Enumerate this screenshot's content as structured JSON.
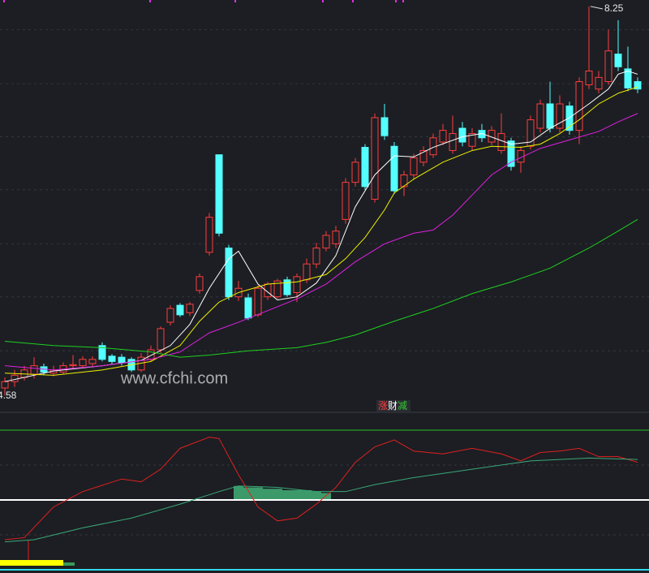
{
  "chart_data": [
    {
      "type": "candlestick",
      "ylim": [
        4.52,
        8.31
      ],
      "gridlines": [
        8.03,
        7.52,
        7.02,
        6.52,
        6.01,
        5.51,
        5.0
      ],
      "up_color": "#ff3c3c",
      "down_color": "#54ffff",
      "candles": [
        [
          4.65,
          4.75,
          4.58,
          4.71
        ],
        [
          4.71,
          4.82,
          4.66,
          4.77
        ],
        [
          4.75,
          4.86,
          4.72,
          4.82
        ],
        [
          4.78,
          4.94,
          4.74,
          4.86
        ],
        [
          4.85,
          4.88,
          4.77,
          4.8
        ],
        [
          4.79,
          4.86,
          4.76,
          4.82
        ],
        [
          4.8,
          4.89,
          4.78,
          4.86
        ],
        [
          4.86,
          4.96,
          4.83,
          4.87
        ],
        [
          4.86,
          4.95,
          4.84,
          4.92
        ],
        [
          4.88,
          4.95,
          4.85,
          4.92
        ],
        [
          5.05,
          5.08,
          4.9,
          4.92
        ],
        [
          4.95,
          4.97,
          4.87,
          4.9
        ],
        [
          4.94,
          4.97,
          4.86,
          4.89
        ],
        [
          4.92,
          4.94,
          4.8,
          4.82
        ],
        [
          4.82,
          4.98,
          4.8,
          4.94
        ],
        [
          4.92,
          5.05,
          4.9,
          5.01
        ],
        [
          5.01,
          5.23,
          4.98,
          5.21
        ],
        [
          5.27,
          5.43,
          5.24,
          5.4
        ],
        [
          5.43,
          5.45,
          5.32,
          5.34
        ],
        [
          5.36,
          5.46,
          5.33,
          5.44
        ],
        [
          5.57,
          5.73,
          5.54,
          5.7
        ],
        [
          5.93,
          6.3,
          5.9,
          6.26
        ],
        [
          6.85,
          6.85,
          6.08,
          6.11
        ],
        [
          5.97,
          6.0,
          5.48,
          5.51
        ],
        [
          5.51,
          5.66,
          5.47,
          5.59
        ],
        [
          5.5,
          5.54,
          5.29,
          5.31
        ],
        [
          5.34,
          5.62,
          5.32,
          5.59
        ],
        [
          5.51,
          5.65,
          5.48,
          5.63
        ],
        [
          5.51,
          5.68,
          5.49,
          5.66
        ],
        [
          5.67,
          5.7,
          5.51,
          5.53
        ],
        [
          5.55,
          5.73,
          5.46,
          5.7
        ],
        [
          5.67,
          5.87,
          5.64,
          5.82
        ],
        [
          5.82,
          6.02,
          5.78,
          5.97
        ],
        [
          5.97,
          6.13,
          5.94,
          6.09
        ],
        [
          6.01,
          6.18,
          5.97,
          6.13
        ],
        [
          6.24,
          6.63,
          6.2,
          6.59
        ],
        [
          6.59,
          6.82,
          6.55,
          6.78
        ],
        [
          6.92,
          6.95,
          6.52,
          6.55
        ],
        [
          6.43,
          7.24,
          6.4,
          7.2
        ],
        [
          7.2,
          7.33,
          6.99,
          7.03
        ],
        [
          6.93,
          6.97,
          6.48,
          6.51
        ],
        [
          6.55,
          6.7,
          6.46,
          6.66
        ],
        [
          6.66,
          6.86,
          6.62,
          6.82
        ],
        [
          6.78,
          6.93,
          6.74,
          6.89
        ],
        [
          6.85,
          7.05,
          6.82,
          7.01
        ],
        [
          6.97,
          7.14,
          6.94,
          7.08
        ],
        [
          6.89,
          7.22,
          6.86,
          7.05
        ],
        [
          7.1,
          7.16,
          6.93,
          6.97
        ],
        [
          6.93,
          7.1,
          6.89,
          7.05
        ],
        [
          7.08,
          7.14,
          6.97,
          7.01
        ],
        [
          6.97,
          7.12,
          6.94,
          7.08
        ],
        [
          6.89,
          7.24,
          6.86,
          7.05
        ],
        [
          6.98,
          7.01,
          6.7,
          6.74
        ],
        [
          6.78,
          6.93,
          6.68,
          6.89
        ],
        [
          6.93,
          7.22,
          6.9,
          7.18
        ],
        [
          7.1,
          7.37,
          7.06,
          7.33
        ],
        [
          7.33,
          7.54,
          7.06,
          7.1
        ],
        [
          7.1,
          7.41,
          7.06,
          7.33
        ],
        [
          7.31,
          7.35,
          7.04,
          7.08
        ],
        [
          7.08,
          7.58,
          6.95,
          7.54
        ],
        [
          7.51,
          8.25,
          7.47,
          7.64
        ],
        [
          7.47,
          7.64,
          7.43,
          7.58
        ],
        [
          7.54,
          8.03,
          7.51,
          7.83
        ],
        [
          7.8,
          8.12,
          7.64,
          7.68
        ],
        [
          7.66,
          7.87,
          7.45,
          7.48
        ],
        [
          7.54,
          7.58,
          7.43,
          7.47
        ]
      ],
      "series": [
        {
          "color": "#ffffff",
          "x": [
            0,
            5,
            10,
            14,
            17,
            19,
            21,
            23,
            24,
            26,
            28,
            30,
            32,
            34,
            36,
            38,
            40,
            42,
            44,
            47,
            49,
            52,
            54,
            56,
            58,
            60,
            62,
            63,
            64,
            65
          ],
          "values": [
            4.71,
            4.81,
            4.86,
            4.91,
            5.05,
            5.25,
            5.59,
            5.87,
            5.94,
            5.63,
            5.48,
            5.51,
            5.64,
            5.9,
            6.36,
            6.66,
            6.84,
            6.83,
            6.92,
            7.02,
            7.05,
            6.95,
            6.97,
            7.1,
            7.2,
            7.33,
            7.47,
            7.61,
            7.64,
            7.61
          ]
        },
        {
          "color": "#f0f000",
          "x": [
            0,
            5,
            10,
            15,
            18,
            20,
            22,
            24,
            27,
            30,
            33,
            35,
            37,
            39,
            40,
            42,
            45,
            48,
            50,
            53,
            55,
            57,
            59,
            61,
            63,
            65
          ],
          "values": [
            4.79,
            4.77,
            4.82,
            4.9,
            5.05,
            5.28,
            5.46,
            5.55,
            5.63,
            5.65,
            5.72,
            5.87,
            6.07,
            6.33,
            6.49,
            6.62,
            6.78,
            6.89,
            6.93,
            6.92,
            6.95,
            7.05,
            7.18,
            7.33,
            7.43,
            7.49
          ]
        },
        {
          "color": "#e020e0",
          "x": [
            0,
            5,
            10,
            15,
            18,
            21,
            24,
            27,
            30,
            33,
            36,
            39,
            42,
            44,
            46,
            48,
            50,
            52,
            55,
            58,
            61,
            63,
            65
          ],
          "values": [
            4.86,
            4.82,
            4.86,
            4.92,
            4.99,
            5.17,
            5.27,
            5.38,
            5.49,
            5.63,
            5.84,
            6.01,
            6.11,
            6.14,
            6.28,
            6.47,
            6.66,
            6.78,
            6.91,
            6.99,
            7.07,
            7.16,
            7.24
          ]
        },
        {
          "color": "#20d020",
          "x": [
            0,
            5,
            10,
            15,
            18,
            21,
            25,
            30,
            33,
            36,
            40,
            44,
            48,
            52,
            56,
            60,
            63,
            65
          ],
          "values": [
            5.09,
            5.05,
            5.03,
            4.99,
            4.94,
            4.96,
            5.0,
            5.03,
            5.08,
            5.15,
            5.28,
            5.4,
            5.54,
            5.65,
            5.78,
            5.97,
            6.13,
            6.24
          ]
        }
      ]
    },
    {
      "type": "line",
      "title_chars": [
        "涨",
        "财",
        "减"
      ],
      "title_colors": [
        "#ff4040",
        "#ffffff",
        "#33cc33"
      ],
      "ylim": [
        0,
        100
      ],
      "gridlines": [
        25,
        75
      ],
      "reference": 50,
      "series": [
        {
          "color": "#e02020",
          "x": [
            0,
            2,
            5,
            8,
            12,
            14,
            16,
            18,
            21,
            22,
            24,
            26,
            28,
            30,
            32,
            34,
            36,
            38,
            40,
            42,
            45,
            48,
            51,
            53,
            55,
            57,
            59,
            61,
            63,
            65
          ],
          "values": [
            21.5,
            23,
            45,
            56,
            65,
            63,
            72,
            87,
            95,
            94,
            68,
            45,
            35,
            37,
            47,
            59,
            77,
            88,
            93,
            85,
            83,
            87,
            83,
            78,
            84,
            85,
            87,
            81,
            81,
            77
          ]
        },
        {
          "color": "#3aa878",
          "x": [
            0,
            3,
            8,
            13,
            18,
            22,
            24,
            28,
            32,
            35,
            38,
            42,
            48,
            54,
            60,
            65
          ],
          "values": [
            20,
            21.5,
            30,
            37,
            47,
            56,
            60,
            59,
            56,
            56,
            61,
            66,
            72,
            78,
            80,
            79
          ]
        }
      ],
      "bars": {
        "color": "#3c9a6a",
        "x": [
          24,
          25,
          26,
          27,
          28,
          29,
          30,
          31,
          32,
          33
        ],
        "values": [
          60,
          59,
          59,
          58,
          58,
          57,
          57,
          57,
          56,
          55
        ]
      }
    }
  ],
  "watermark": "www.cfchi.com"
}
